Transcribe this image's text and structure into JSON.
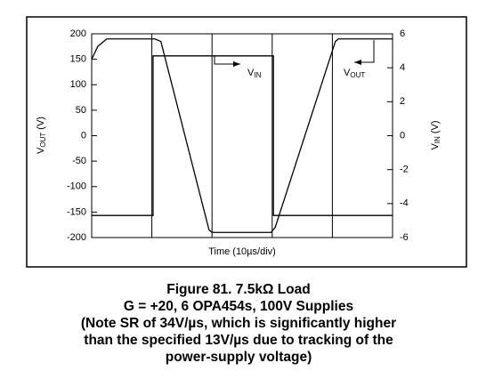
{
  "chart_data": {
    "type": "line",
    "ylabel": [
      "V",
      "OUT",
      " (V)"
    ],
    "y2label": [
      "V",
      "IN",
      " (V)"
    ],
    "xlabel": "Time (10µs/div)",
    "xlim": [
      0,
      50
    ],
    "xticks": [
      0,
      10,
      20,
      30,
      40,
      50
    ],
    "ylim": [
      -200,
      200
    ],
    "yticks": [
      200,
      150,
      100,
      50,
      0,
      -50,
      -100,
      -150,
      -200
    ],
    "y2lim": [
      -6,
      6
    ],
    "y2ticks": [
      6,
      4,
      2,
      0,
      -2,
      -4,
      -6
    ],
    "grid": true,
    "series": [
      {
        "name": "VOUT",
        "color": "#000000",
        "x": [
          0,
          1,
          2.5,
          10.5,
          11.5,
          19.5,
          20,
          29.8,
          30.5,
          40.5,
          41,
          50
        ],
        "values": [
          150,
          175,
          190,
          190,
          185,
          -185,
          -190,
          -190,
          -180,
          185,
          190,
          190
        ]
      },
      {
        "name": "VIN",
        "color": "#000000",
        "axis": "y2",
        "x": [
          0,
          10.2,
          10.2,
          30.2,
          30.2,
          50
        ],
        "values": [
          -4.7,
          -4.7,
          4.7,
          4.7,
          -4.7,
          -4.7
        ]
      }
    ],
    "annotations": [
      [
        "V",
        "IN"
      ],
      [
        "V",
        "OUT"
      ]
    ],
    "caption": [
      "Figure 81. 7.5kΩ Load",
      "G = +20, 6 OPA454s, 100V Supplies",
      "(Note SR of 34V/µs, which is significantly higher",
      "than the specified 13V/µs due to tracking of the",
      "power-supply voltage)"
    ]
  }
}
